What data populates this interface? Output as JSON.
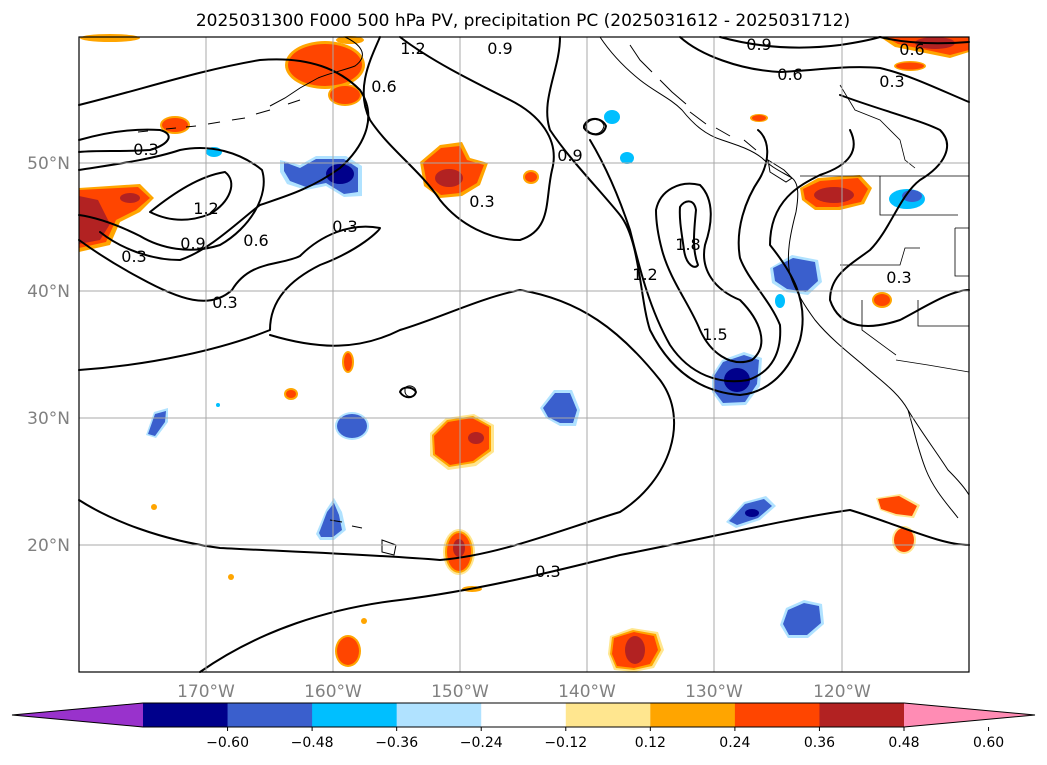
{
  "title": "2025031300 F000 500 hPa PV, precipitation PC (2025031612 - 2025031712)",
  "lat_labels": [
    "50°N",
    "40°N",
    "30°N",
    "20°N"
  ],
  "lon_labels": [
    "170°W",
    "160°W",
    "150°W",
    "140°W",
    "130°W",
    "120°W"
  ],
  "colorbar": {
    "ticks": [
      "−0.60",
      "−0.48",
      "−0.36",
      "−0.24",
      "−0.12",
      "0.12",
      "0.24",
      "0.36",
      "0.48",
      "0.60"
    ],
    "colors": [
      "#9932cc",
      "#00008b",
      "#3a5fcd",
      "#00bfff",
      "#b0e2ff",
      "#ffffff",
      "#ffe68f",
      "#ffa500",
      "#ff4500",
      "#b22222",
      "#ff8cb4"
    ]
  },
  "contour_labels": [
    "1.2",
    "0.9",
    "0.9",
    "0.6",
    "0.6",
    "0.3",
    "0.6",
    "0.3",
    "1.2",
    "0.9",
    "0.6",
    "0.3",
    "0.3",
    "0.3",
    "0.9",
    "1.8",
    "1.2",
    "1.5",
    "0.3",
    "0.3"
  ],
  "colors": {
    "pos_light": "#ffe68f",
    "pos_orange": "#ffa500",
    "pos_red": "#ff4500",
    "pos_dark": "#b22222",
    "neg_light": "#b0e2ff",
    "neg_cyan": "#00bfff",
    "neg_blue": "#3a5fcd",
    "neg_dark": "#00008b"
  }
}
